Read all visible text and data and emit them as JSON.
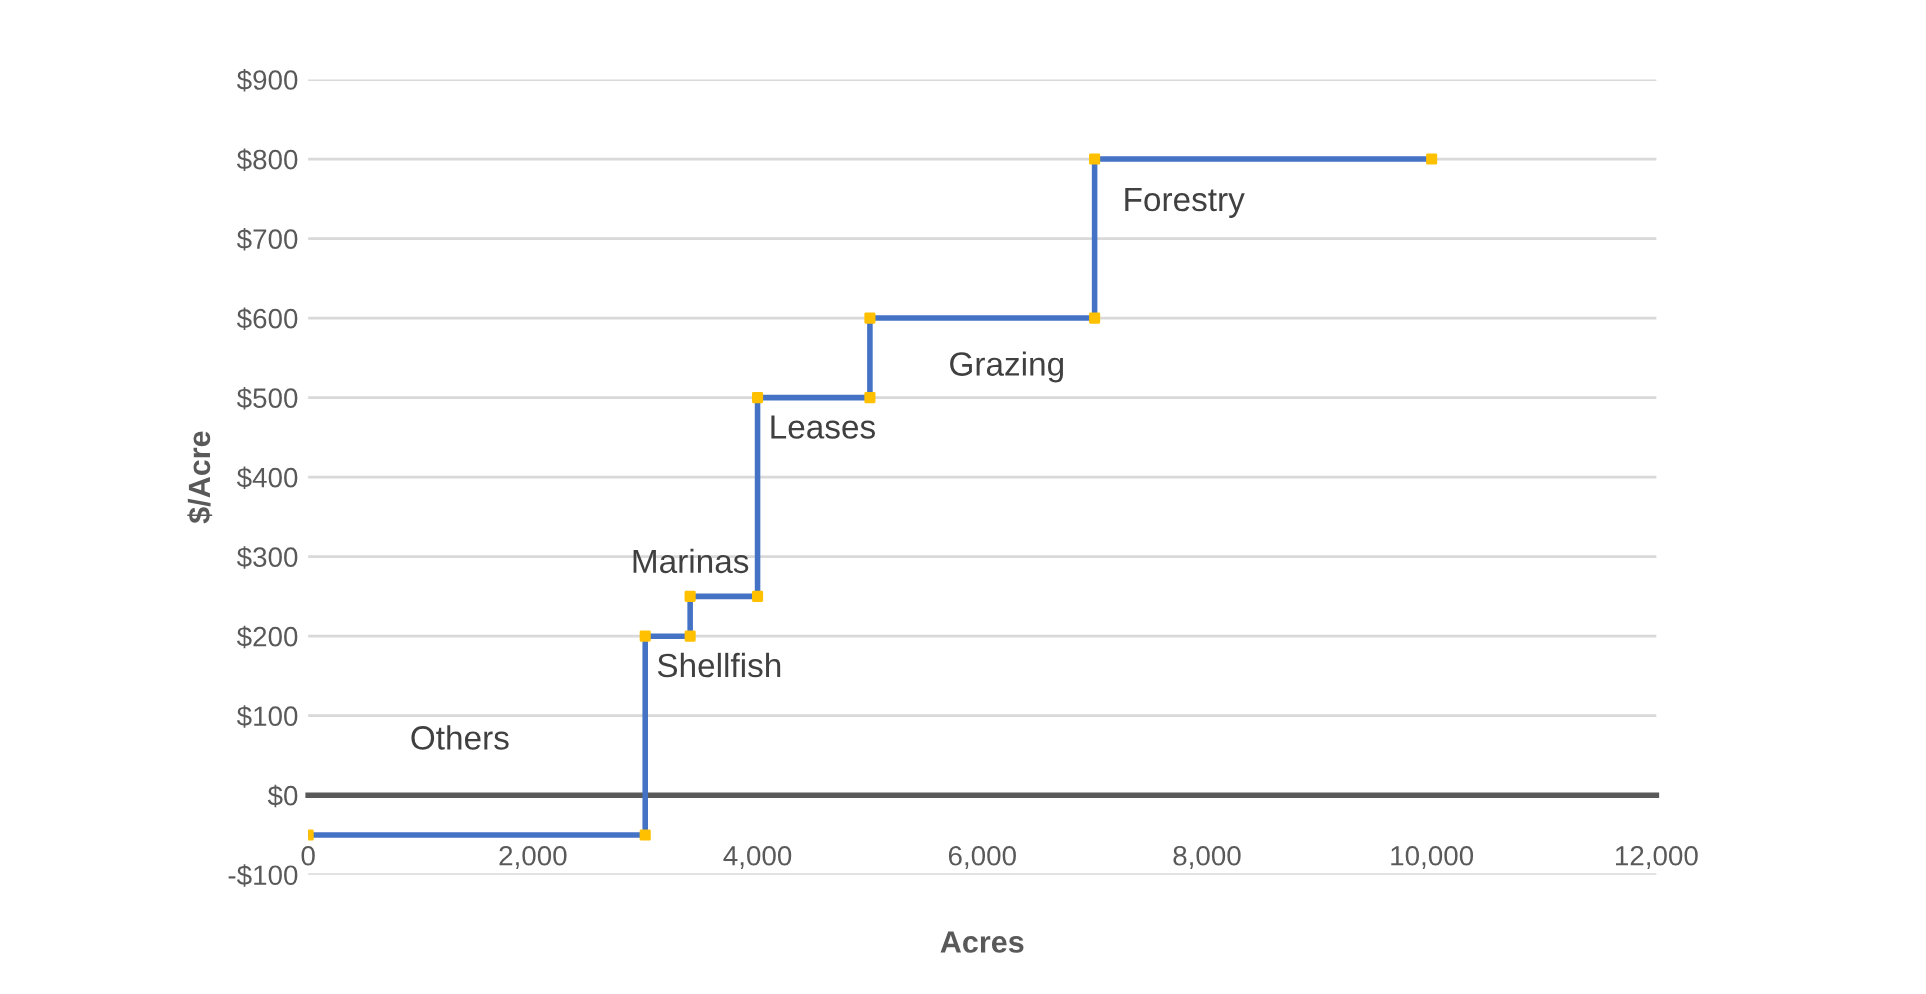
{
  "chart_data": {
    "type": "line",
    "xlabel": "Acres",
    "ylabel": "$/Acre",
    "series": [
      {
        "color": "#4472c4",
        "marker": "none",
        "x": [
          0,
          3000,
          3000,
          3400,
          3400,
          4000,
          4000,
          5000,
          5000,
          7000,
          7000,
          10000
        ],
        "values": [
          -50,
          -50,
          200,
          200,
          250,
          250,
          500,
          500,
          600,
          600,
          800,
          800
        ]
      },
      {
        "type": "scatter",
        "color": "#ffc000",
        "marker": "square",
        "x": [
          0,
          3000,
          3000,
          3400,
          3400,
          4000,
          4000,
          5000,
          5000,
          7000,
          7000,
          10000
        ],
        "values": [
          -50,
          -50,
          200,
          200,
          250,
          250,
          500,
          500,
          600,
          600,
          800,
          800
        ]
      }
    ],
    "annotations": [
      "Others",
      "Shellfish",
      "Marinas",
      "Leases",
      "Grazing",
      "Forestry"
    ],
    "xlim": [
      0,
      12000
    ],
    "xticks": [
      0,
      {
        "value": 2000,
        "label": "2,000"
      },
      {
        "value": 4000,
        "label": "4,000"
      },
      {
        "value": 6000,
        "label": "6,000"
      },
      {
        "value": 8000,
        "label": "8,000"
      },
      {
        "value": 10000,
        "label": "10,000"
      },
      {
        "value": 12000,
        "label": "12,000"
      }
    ],
    "ylim": [
      -100,
      900
    ],
    "yticks": [
      {
        "value": -100,
        "label": "-$100"
      },
      {
        "value": 0,
        "label": "$0"
      },
      {
        "value": 100,
        "label": "$100"
      },
      {
        "value": 200,
        "label": "$200"
      },
      {
        "value": 300,
        "label": "$300"
      },
      {
        "value": 400,
        "label": "$400"
      },
      {
        "value": 500,
        "label": "$500"
      },
      {
        "value": 600,
        "label": "$600"
      },
      {
        "value": 700,
        "label": "$700"
      },
      {
        "value": 800,
        "label": "$800"
      },
      {
        "value": 900,
        "label": "$900"
      }
    ],
    "grid": "y"
  }
}
